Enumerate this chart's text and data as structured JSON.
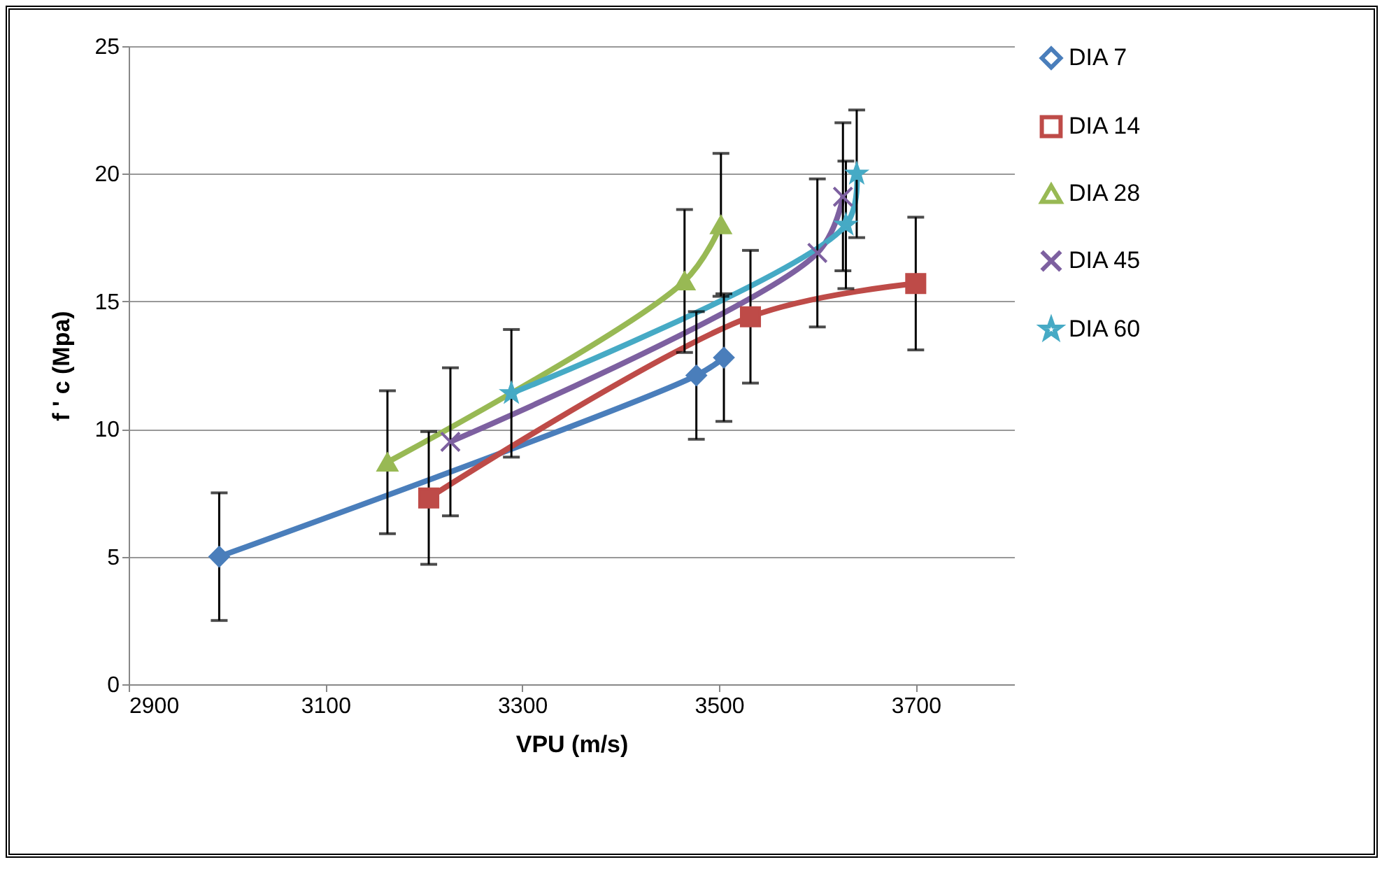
{
  "chart_data": {
    "type": "line",
    "xlabel": "VPU (m/s)",
    "ylabel": "f ' c (Mpa)",
    "xlim": [
      2900,
      3800
    ],
    "xticks": [
      2900,
      3100,
      3300,
      3500,
      3700
    ],
    "ylim": [
      0,
      25
    ],
    "yticks": [
      0,
      5,
      10,
      15,
      20,
      25
    ],
    "grid": "y",
    "legend": "right",
    "series": [
      {
        "name": "DIA 7",
        "color": "#4a7ebb",
        "marker": "diamond",
        "x": [
          2992,
          3477,
          3505
        ],
        "values": [
          5.0,
          12.1,
          12.8
        ],
        "errors": [
          2.5,
          2.5,
          2.5
        ]
      },
      {
        "name": "DIA 14",
        "color": "#be4b48",
        "marker": "square",
        "x": [
          3205,
          3532,
          3700
        ],
        "values": [
          7.3,
          14.4,
          15.7
        ],
        "errors": [
          2.6,
          2.6,
          2.6
        ]
      },
      {
        "name": "DIA 28",
        "color": "#98b954",
        "marker": "triangle",
        "x": [
          3163,
          3465,
          3502
        ],
        "values": [
          8.7,
          15.8,
          18.0
        ],
        "errors": [
          2.8,
          2.8,
          2.8
        ]
      },
      {
        "name": "DIA 45",
        "color": "#7d60a0",
        "marker": "cross",
        "x": [
          3227,
          3600,
          3626
        ],
        "values": [
          9.5,
          16.9,
          19.1
        ],
        "errors": [
          2.9,
          2.9,
          2.9
        ]
      },
      {
        "name": "DIA 60",
        "color": "#46aac5",
        "marker": "star",
        "x": [
          3289,
          3629,
          3640
        ],
        "values": [
          11.4,
          18.0,
          20.0
        ],
        "errors": [
          2.5,
          2.5,
          2.5
        ]
      }
    ]
  }
}
